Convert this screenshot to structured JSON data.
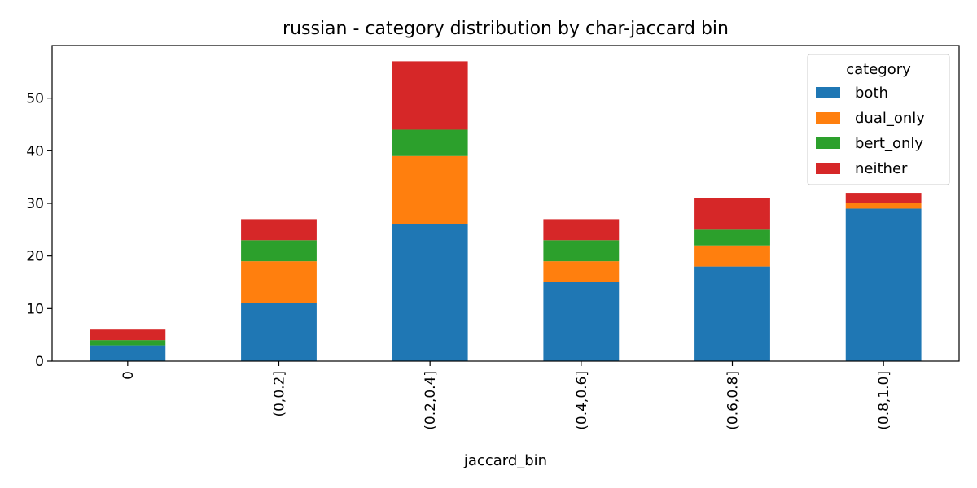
{
  "chart_data": {
    "type": "bar",
    "stacked": true,
    "title": "russian - category distribution by char-jaccard bin",
    "xlabel": "jaccard_bin",
    "ylabel": "",
    "categories": [
      "0",
      "(0,0.2]",
      "(0.2,0.4]",
      "(0.4,0.6]",
      "(0.6,0.8]",
      "(0.8,1.0]"
    ],
    "series": [
      {
        "name": "both",
        "color": "#1f77b4",
        "values": [
          3,
          11,
          26,
          15,
          18,
          29
        ]
      },
      {
        "name": "dual_only",
        "color": "#ff7f0e",
        "values": [
          0,
          8,
          13,
          4,
          4,
          1
        ]
      },
      {
        "name": "bert_only",
        "color": "#2ca02c",
        "values": [
          1,
          4,
          5,
          4,
          3,
          0
        ]
      },
      {
        "name": "neither",
        "color": "#d62728",
        "values": [
          2,
          4,
          13,
          4,
          6,
          2
        ]
      }
    ],
    "ylim": [
      0,
      60
    ],
    "yticks": [
      0,
      10,
      20,
      30,
      40,
      50
    ],
    "grid": false,
    "legend_title": "category",
    "legend_position": "top-right"
  }
}
